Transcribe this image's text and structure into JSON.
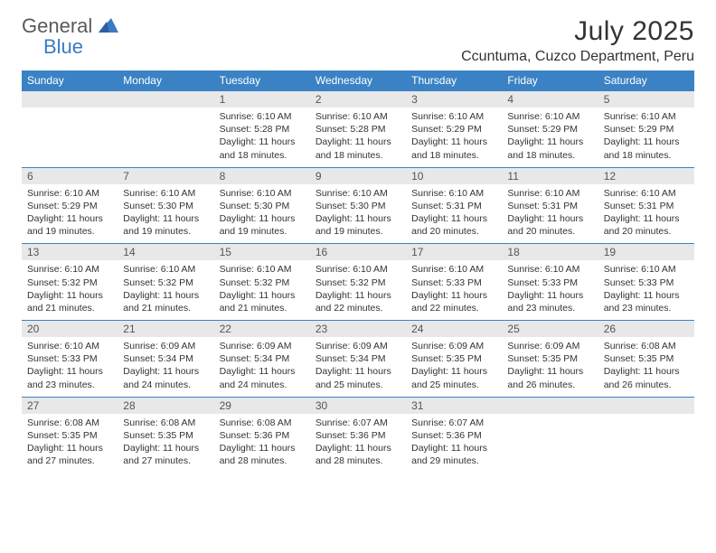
{
  "logo": {
    "word1": "General",
    "word2": "Blue"
  },
  "title": "July 2025",
  "location": "Ccuntuma, Cuzco Department, Peru",
  "colors": {
    "header_bg": "#3b82c4",
    "header_text": "#ffffff",
    "row_border": "#3b82c4",
    "daynum_bg": "#e8e8e8",
    "logo_gray": "#5a5a5a",
    "logo_blue": "#3b7bc4"
  },
  "typography": {
    "title_fontsize": 30,
    "location_fontsize": 16,
    "dayhead_fontsize": 12,
    "daynum_fontsize": 12,
    "body_fontsize": 10.5
  },
  "day_names": [
    "Sunday",
    "Monday",
    "Tuesday",
    "Wednesday",
    "Thursday",
    "Friday",
    "Saturday"
  ],
  "weeks": [
    [
      null,
      null,
      {
        "n": "1",
        "sunrise": "6:10 AM",
        "sunset": "5:28 PM",
        "dl": "11 hours and 18 minutes."
      },
      {
        "n": "2",
        "sunrise": "6:10 AM",
        "sunset": "5:28 PM",
        "dl": "11 hours and 18 minutes."
      },
      {
        "n": "3",
        "sunrise": "6:10 AM",
        "sunset": "5:29 PM",
        "dl": "11 hours and 18 minutes."
      },
      {
        "n": "4",
        "sunrise": "6:10 AM",
        "sunset": "5:29 PM",
        "dl": "11 hours and 18 minutes."
      },
      {
        "n": "5",
        "sunrise": "6:10 AM",
        "sunset": "5:29 PM",
        "dl": "11 hours and 18 minutes."
      }
    ],
    [
      {
        "n": "6",
        "sunrise": "6:10 AM",
        "sunset": "5:29 PM",
        "dl": "11 hours and 19 minutes."
      },
      {
        "n": "7",
        "sunrise": "6:10 AM",
        "sunset": "5:30 PM",
        "dl": "11 hours and 19 minutes."
      },
      {
        "n": "8",
        "sunrise": "6:10 AM",
        "sunset": "5:30 PM",
        "dl": "11 hours and 19 minutes."
      },
      {
        "n": "9",
        "sunrise": "6:10 AM",
        "sunset": "5:30 PM",
        "dl": "11 hours and 19 minutes."
      },
      {
        "n": "10",
        "sunrise": "6:10 AM",
        "sunset": "5:31 PM",
        "dl": "11 hours and 20 minutes."
      },
      {
        "n": "11",
        "sunrise": "6:10 AM",
        "sunset": "5:31 PM",
        "dl": "11 hours and 20 minutes."
      },
      {
        "n": "12",
        "sunrise": "6:10 AM",
        "sunset": "5:31 PM",
        "dl": "11 hours and 20 minutes."
      }
    ],
    [
      {
        "n": "13",
        "sunrise": "6:10 AM",
        "sunset": "5:32 PM",
        "dl": "11 hours and 21 minutes."
      },
      {
        "n": "14",
        "sunrise": "6:10 AM",
        "sunset": "5:32 PM",
        "dl": "11 hours and 21 minutes."
      },
      {
        "n": "15",
        "sunrise": "6:10 AM",
        "sunset": "5:32 PM",
        "dl": "11 hours and 21 minutes."
      },
      {
        "n": "16",
        "sunrise": "6:10 AM",
        "sunset": "5:32 PM",
        "dl": "11 hours and 22 minutes."
      },
      {
        "n": "17",
        "sunrise": "6:10 AM",
        "sunset": "5:33 PM",
        "dl": "11 hours and 22 minutes."
      },
      {
        "n": "18",
        "sunrise": "6:10 AM",
        "sunset": "5:33 PM",
        "dl": "11 hours and 23 minutes."
      },
      {
        "n": "19",
        "sunrise": "6:10 AM",
        "sunset": "5:33 PM",
        "dl": "11 hours and 23 minutes."
      }
    ],
    [
      {
        "n": "20",
        "sunrise": "6:10 AM",
        "sunset": "5:33 PM",
        "dl": "11 hours and 23 minutes."
      },
      {
        "n": "21",
        "sunrise": "6:09 AM",
        "sunset": "5:34 PM",
        "dl": "11 hours and 24 minutes."
      },
      {
        "n": "22",
        "sunrise": "6:09 AM",
        "sunset": "5:34 PM",
        "dl": "11 hours and 24 minutes."
      },
      {
        "n": "23",
        "sunrise": "6:09 AM",
        "sunset": "5:34 PM",
        "dl": "11 hours and 25 minutes."
      },
      {
        "n": "24",
        "sunrise": "6:09 AM",
        "sunset": "5:35 PM",
        "dl": "11 hours and 25 minutes."
      },
      {
        "n": "25",
        "sunrise": "6:09 AM",
        "sunset": "5:35 PM",
        "dl": "11 hours and 26 minutes."
      },
      {
        "n": "26",
        "sunrise": "6:08 AM",
        "sunset": "5:35 PM",
        "dl": "11 hours and 26 minutes."
      }
    ],
    [
      {
        "n": "27",
        "sunrise": "6:08 AM",
        "sunset": "5:35 PM",
        "dl": "11 hours and 27 minutes."
      },
      {
        "n": "28",
        "sunrise": "6:08 AM",
        "sunset": "5:35 PM",
        "dl": "11 hours and 27 minutes."
      },
      {
        "n": "29",
        "sunrise": "6:08 AM",
        "sunset": "5:36 PM",
        "dl": "11 hours and 28 minutes."
      },
      {
        "n": "30",
        "sunrise": "6:07 AM",
        "sunset": "5:36 PM",
        "dl": "11 hours and 28 minutes."
      },
      {
        "n": "31",
        "sunrise": "6:07 AM",
        "sunset": "5:36 PM",
        "dl": "11 hours and 29 minutes."
      },
      null,
      null
    ]
  ],
  "labels": {
    "sunrise": "Sunrise:",
    "sunset": "Sunset:",
    "daylight": "Daylight:"
  }
}
